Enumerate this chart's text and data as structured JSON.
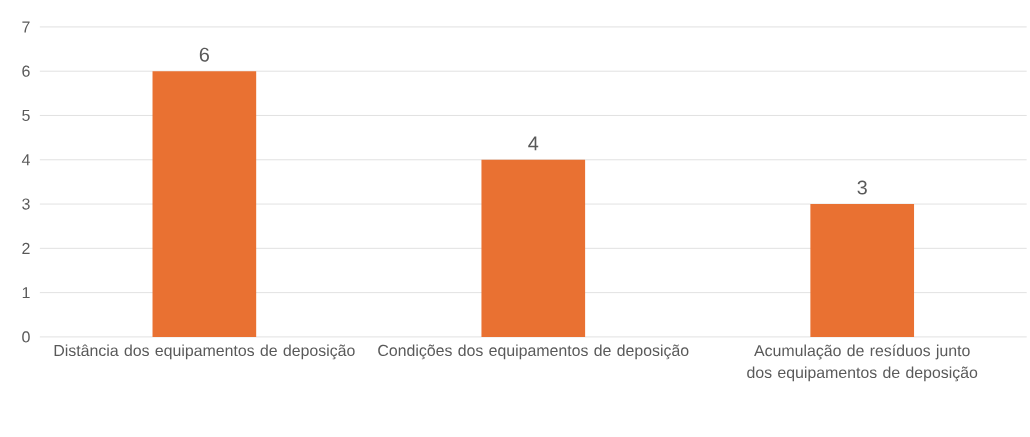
{
  "chart_data": {
    "type": "bar",
    "categories": [
      "Distância dos equipamentos de deposição",
      "Condições dos equipamentos de deposição",
      "Acumulação de resíduos junto dos equipamentos de deposição"
    ],
    "values": [
      6,
      4,
      3
    ],
    "color": "#e97132",
    "data_labels": true,
    "ylim": [
      0,
      7
    ],
    "yticks": [
      0,
      1,
      2,
      3,
      4,
      5,
      6,
      7
    ],
    "grid": "y"
  }
}
